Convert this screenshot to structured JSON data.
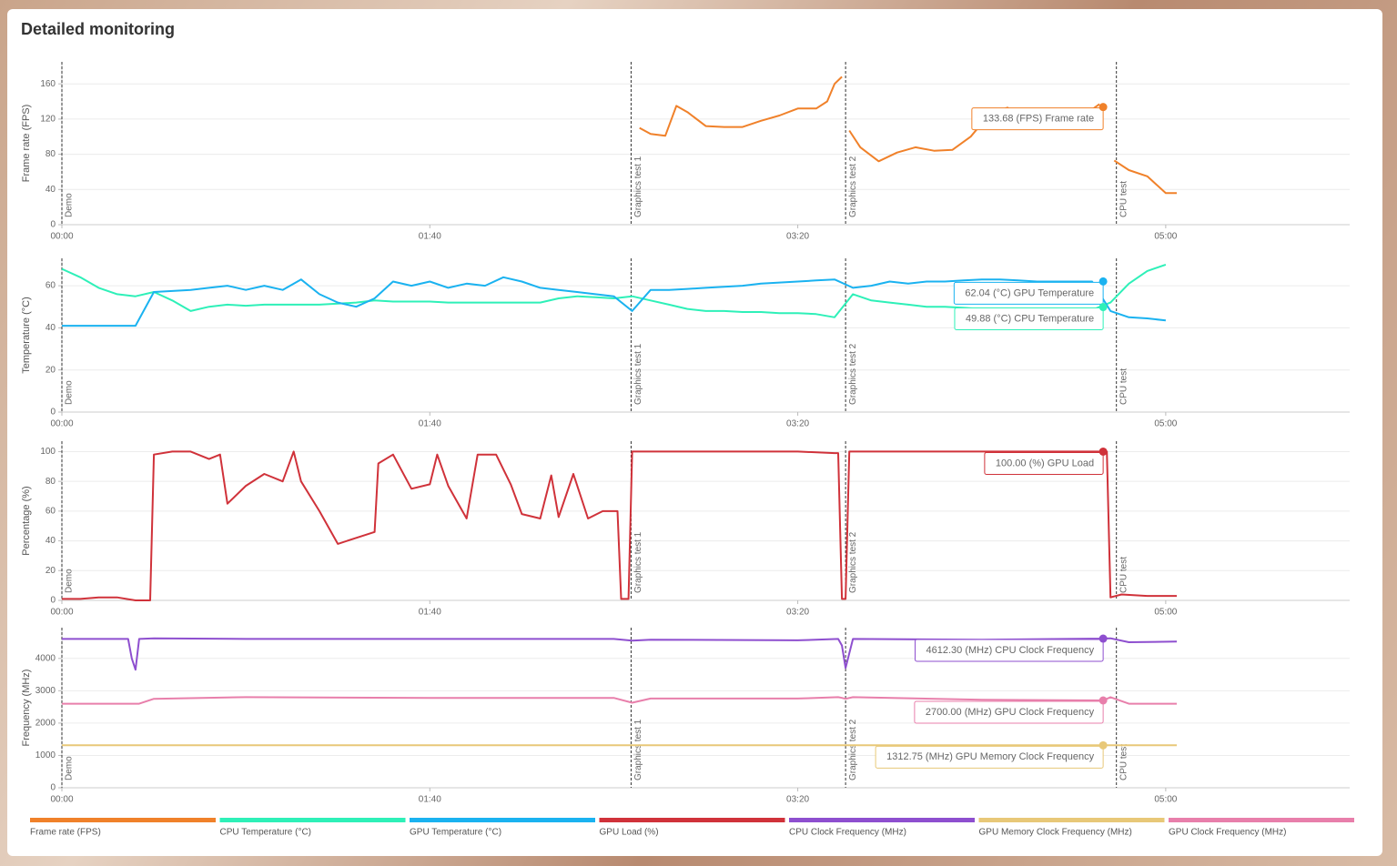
{
  "title": "Detailed monitoring",
  "markers": [
    {
      "x": 0,
      "label": "Demo"
    },
    {
      "x": 154.7,
      "label": "Graphics test 1"
    },
    {
      "x": 213,
      "label": "Graphics test 2"
    },
    {
      "x": 286.6,
      "label": "CPU test"
    }
  ],
  "chart_data": [
    {
      "type": "line",
      "ylabel": "Frame rate (FPS)",
      "xlim": [
        0,
        350
      ],
      "xticks": [
        {
          "value": 0,
          "label": "00:00"
        },
        {
          "value": 100,
          "label": "01:40"
        },
        {
          "value": 200,
          "label": "03:20"
        },
        {
          "value": 300,
          "label": "05:00"
        }
      ],
      "ylim": [
        0,
        185
      ],
      "yticks": [
        0,
        40,
        80,
        120,
        160
      ],
      "grid": true,
      "x": [
        157,
        160,
        164,
        167,
        170,
        175,
        180,
        185,
        190,
        195,
        200,
        205,
        208,
        210,
        212,
        213,
        214,
        217,
        222,
        227,
        232,
        237,
        242,
        247,
        252,
        257,
        262,
        267,
        272,
        277,
        282,
        284,
        286,
        290,
        295,
        300,
        303
      ],
      "series": [
        {
          "name": "Frame rate (FPS)",
          "color": "#f0812a",
          "values": [
            110,
            103,
            101,
            135,
            128,
            112,
            111,
            111,
            118,
            124,
            132,
            132,
            140,
            160,
            168,
            null,
            107,
            88,
            72,
            82,
            88,
            84,
            85,
            100,
            125,
            133,
            115,
            115,
            110,
            122,
            137,
            null,
            73,
            62,
            55,
            36,
            36
          ]
        }
      ],
      "annotations": [
        {
          "x": 283,
          "y": 133.68,
          "label": "133.68 (FPS) Frame rate",
          "color": "#f0812a"
        }
      ]
    },
    {
      "type": "line",
      "ylabel": "Temperature (°C)",
      "xlim": [
        0,
        350
      ],
      "xticks": [
        {
          "value": 0,
          "label": "00:00"
        },
        {
          "value": 100,
          "label": "01:40"
        },
        {
          "value": 200,
          "label": "03:20"
        },
        {
          "value": 300,
          "label": "05:00"
        }
      ],
      "ylim": [
        0,
        73
      ],
      "yticks": [
        0,
        20,
        40,
        60
      ],
      "grid": true,
      "x": [
        0,
        5,
        10,
        15,
        20,
        25,
        30,
        35,
        40,
        45,
        50,
        55,
        60,
        65,
        70,
        75,
        80,
        85,
        90,
        95,
        100,
        105,
        110,
        115,
        120,
        125,
        130,
        135,
        140,
        145,
        150,
        155,
        160,
        165,
        170,
        175,
        180,
        185,
        190,
        195,
        200,
        205,
        210,
        215,
        220,
        225,
        230,
        235,
        240,
        245,
        250,
        255,
        260,
        265,
        270,
        275,
        280,
        285,
        290,
        295,
        300
      ],
      "series": [
        {
          "name": "CPU Temperature (°C)",
          "color": "#2ef0b8",
          "values": [
            68,
            64,
            59,
            56,
            55,
            57,
            53,
            48,
            50,
            51,
            50.5,
            51,
            51,
            51,
            51,
            51.5,
            52,
            53,
            52.5,
            52.5,
            52.5,
            52,
            52,
            52,
            52,
            52,
            52,
            54,
            55,
            54.5,
            54,
            55,
            53,
            51,
            49,
            48,
            48,
            47.5,
            47.5,
            47,
            47,
            46.5,
            45,
            56,
            53,
            52,
            51,
            50,
            50,
            49.5,
            49,
            48.5,
            48.5,
            48.5,
            48.5,
            48.5,
            48.5,
            52,
            61,
            67,
            70
          ]
        },
        {
          "name": "GPU Temperature (°C)",
          "color": "#1ab2f0",
          "values": [
            41,
            41,
            41,
            41,
            41,
            57,
            57.5,
            58,
            59,
            60,
            58,
            60,
            58,
            63,
            56,
            52,
            50,
            54,
            62,
            60,
            62,
            59,
            61,
            60,
            64,
            62,
            59,
            58,
            57,
            56,
            55,
            48,
            58,
            58,
            58.5,
            59,
            59.5,
            60,
            61,
            61.5,
            62,
            62.5,
            63,
            59,
            60,
            62,
            61,
            62,
            62,
            62.5,
            63,
            63,
            62.5,
            62,
            62,
            62,
            62,
            48,
            45,
            44.5,
            43.5
          ]
        }
      ],
      "annotations": [
        {
          "x": 283,
          "y": 62.04,
          "label": "62.04 (°C) GPU Temperature",
          "color": "#1ab2f0"
        },
        {
          "x": 283,
          "y": 49.88,
          "label": "49.88 (°C) CPU Temperature",
          "color": "#2ef0b8"
        }
      ]
    },
    {
      "type": "line",
      "ylabel": "Percentage (%)",
      "xlim": [
        0,
        350
      ],
      "xticks": [
        {
          "value": 0,
          "label": "00:00"
        },
        {
          "value": 100,
          "label": "01:40"
        },
        {
          "value": 200,
          "label": "03:20"
        },
        {
          "value": 300,
          "label": "05:00"
        }
      ],
      "ylim": [
        0,
        107
      ],
      "yticks": [
        0,
        20,
        40,
        60,
        80,
        100
      ],
      "grid": true,
      "x": [
        0,
        5,
        10,
        15,
        20,
        24,
        25,
        30,
        35,
        40,
        43,
        45,
        50,
        55,
        60,
        63,
        65,
        70,
        75,
        80,
        85,
        86,
        90,
        95,
        100,
        102,
        105,
        110,
        113,
        118,
        122,
        125,
        130,
        133,
        135,
        139,
        143,
        147,
        151,
        152,
        154,
        155,
        160,
        180,
        200,
        210,
        211,
        212,
        213,
        214,
        230,
        260,
        283,
        284,
        285,
        288,
        295,
        303
      ],
      "series": [
        {
          "name": "GPU Load (%)",
          "color": "#d0323a",
          "values": [
            1,
            1,
            2,
            2,
            0,
            0,
            98,
            100,
            100,
            95,
            98,
            65,
            77,
            85,
            80,
            100,
            80,
            60,
            38,
            42,
            46,
            92,
            98,
            75,
            78,
            98,
            77,
            55,
            98,
            98,
            78,
            58,
            55,
            84,
            56,
            85,
            55,
            60,
            60,
            1,
            1,
            100,
            100,
            100,
            100,
            99,
            99,
            1,
            1,
            100,
            100,
            100,
            100,
            100,
            2,
            4,
            3,
            3
          ]
        }
      ],
      "annotations": [
        {
          "x": 283,
          "y": 100.0,
          "label": "100.00 (%) GPU Load",
          "color": "#d0323a"
        }
      ]
    },
    {
      "type": "line",
      "ylabel": "Frequency (MHz)",
      "xlim": [
        0,
        350
      ],
      "xticks": [
        {
          "value": 0,
          "label": "00:00"
        },
        {
          "value": 100,
          "label": "01:40"
        },
        {
          "value": 200,
          "label": "03:20"
        },
        {
          "value": 300,
          "label": "05:00"
        }
      ],
      "ylim": [
        0,
        4950
      ],
      "yticks": [
        0,
        1000,
        2000,
        3000,
        4000
      ],
      "grid": true,
      "x": [
        0,
        10,
        18,
        19,
        20,
        21,
        25,
        50,
        100,
        150,
        155,
        160,
        200,
        211,
        212,
        213,
        215,
        250,
        283,
        285,
        290,
        303
      ],
      "series": [
        {
          "name": "CPU Clock Frequency (MHz)",
          "color": "#8e4fcf",
          "values": [
            4600,
            4600,
            4600,
            4000,
            3650,
            4600,
            4620,
            4600,
            4600,
            4600,
            4550,
            4580,
            4560,
            4600,
            4400,
            3700,
            4600,
            4580,
            4612.3,
            4620,
            4500,
            4520
          ]
        },
        {
          "name": "GPU Memory Clock Frequency (MHz)",
          "color": "#e8c878",
          "values": [
            1312.75,
            1312.75,
            1312.75,
            1312.75,
            1312.75,
            1312.75,
            1312.75,
            1312.75,
            1312.75,
            1312.75,
            1312.75,
            1312.75,
            1312.75,
            1312.75,
            1312.75,
            1312.75,
            1312.75,
            1312.75,
            1312.75,
            1312.75,
            1312.75,
            1312.75
          ]
        },
        {
          "name": "GPU Clock Frequency (MHz)",
          "color": "#e87fab",
          "values": [
            2600,
            2600,
            2600,
            2600,
            2600,
            2600,
            2750,
            2800,
            2780,
            2780,
            2630,
            2760,
            2760,
            2800,
            2780,
            2750,
            2800,
            2720,
            2700,
            2800,
            2600,
            2600
          ]
        }
      ],
      "annotations": [
        {
          "x": 283,
          "y": 4612.3,
          "label": "4612.30 (MHz) CPU Clock Frequency",
          "color": "#8e4fcf"
        },
        {
          "x": 283,
          "y": 2700.0,
          "label": "2700.00 (MHz) GPU Clock Frequency",
          "color": "#e87fab"
        },
        {
          "x": 283,
          "y": 1312.75,
          "label": "1312.75 (MHz) GPU Memory Clock Frequency",
          "color": "#e8c878"
        }
      ]
    }
  ]
}
